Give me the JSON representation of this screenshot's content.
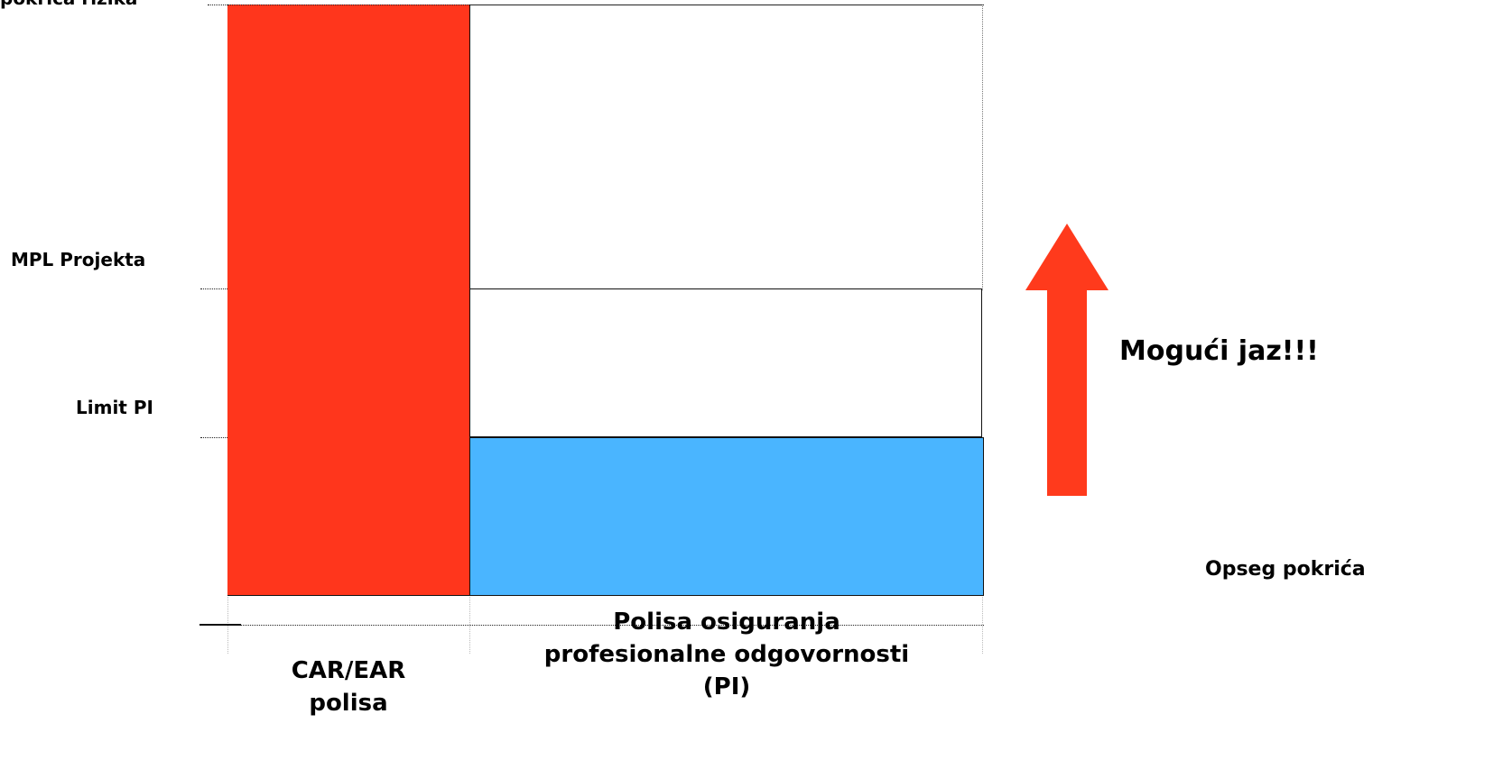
{
  "diagram": {
    "labels": {
      "top": "pokrica rizika",
      "mpl": "MPL Projekta",
      "limit_pi": "Limit PI"
    },
    "bars": {
      "car": {
        "caption": "CAR/EAR\npolisa",
        "color": "#ff361c"
      },
      "pi": {
        "caption": "Polisa osiguranja\nprofesionalne odgovornosti\n(PI)",
        "color": "#4ab5ff"
      }
    },
    "gap_text": "Mogući jaz!!!",
    "scope_text": "Opseg pokrića",
    "arrow_color": "#ff3a1c"
  }
}
